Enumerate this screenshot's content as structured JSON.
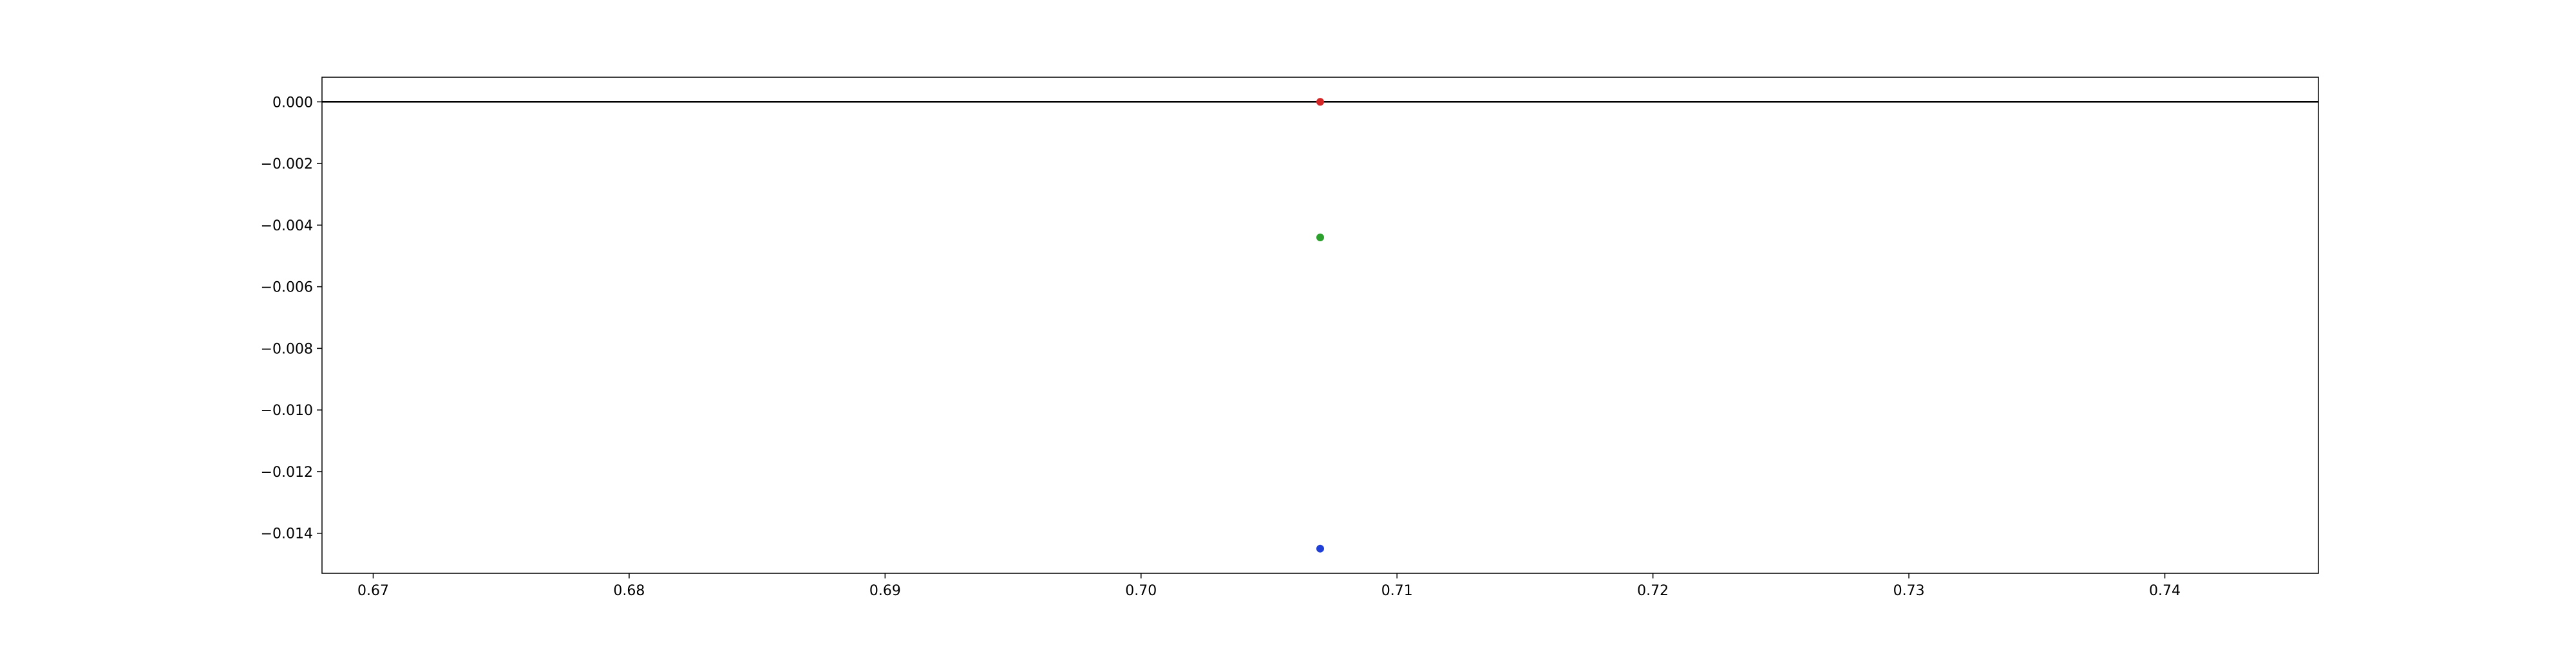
{
  "chart_data": {
    "type": "scatter",
    "title": "",
    "xlabel": "",
    "ylabel": "",
    "xlim": [
      0.668,
      0.746
    ],
    "ylim": [
      -0.0153,
      0.0008
    ],
    "x_ticks": [
      0.67,
      0.68,
      0.69,
      0.7,
      0.71,
      0.72,
      0.73,
      0.74
    ],
    "x_tick_labels": [
      "0.67",
      "0.68",
      "0.69",
      "0.70",
      "0.71",
      "0.72",
      "0.73",
      "0.74"
    ],
    "y_ticks": [
      0.0,
      -0.002,
      -0.004,
      -0.006,
      -0.008,
      -0.01,
      -0.012,
      -0.014
    ],
    "y_tick_labels": [
      "0.000",
      "−0.002",
      "−0.004",
      "−0.006",
      "−0.008",
      "−0.010",
      "−0.012",
      "−0.014"
    ],
    "grid": false,
    "reference_line": {
      "y": 0,
      "color": "#000000"
    },
    "points": [
      {
        "x": 0.707,
        "y": 0.0,
        "color": "#d62728"
      },
      {
        "x": 0.707,
        "y": -0.0044,
        "color": "#2ca02c"
      },
      {
        "x": 0.707,
        "y": -0.0145,
        "color": "#1f3fd6"
      }
    ]
  }
}
